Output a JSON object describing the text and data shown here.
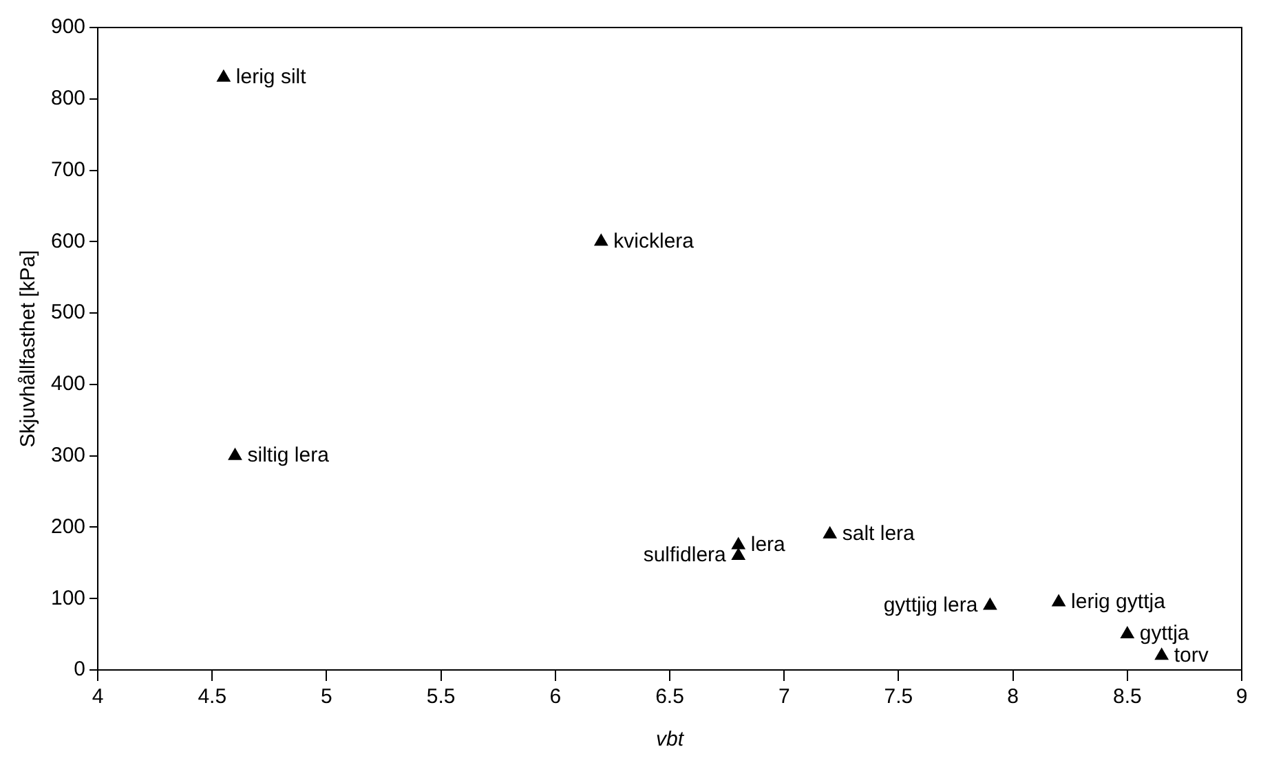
{
  "chart_data": {
    "type": "scatter",
    "xlabel": "vbt",
    "ylabel": "Skjuvhållfasthet [kPa]",
    "x": [
      4.55,
      6.2,
      4.6,
      6.8,
      6.8,
      7.2,
      7.9,
      8.2,
      8.5,
      8.65
    ],
    "series": [
      {
        "color": "#000000",
        "values": [
          830,
          600,
          300,
          175,
          160,
          190,
          90,
          95,
          50,
          20
        ]
      }
    ],
    "annotations": [
      {
        "text": "lerig silt",
        "x": 4.55,
        "y": 830
      },
      {
        "text": "kvicklera",
        "x": 6.2,
        "y": 600
      },
      {
        "text": "siltig lera",
        "x": 4.6,
        "y": 300
      },
      {
        "text": "lera",
        "x": 6.8,
        "y": 175
      },
      {
        "text": "sulfidlera",
        "x": 6.8,
        "y": 160
      },
      {
        "text": "salt lera",
        "x": 7.2,
        "y": 190
      },
      {
        "text": "gyttjig lera",
        "x": 7.9,
        "y": 90
      },
      {
        "text": "lerig gyttja",
        "x": 8.2,
        "y": 95
      },
      {
        "text": "gyttja",
        "x": 8.5,
        "y": 50
      },
      {
        "text": "torv",
        "x": 8.65,
        "y": 20
      }
    ],
    "xlim": [
      4,
      9
    ],
    "xticks": [
      4,
      4.5,
      5,
      5.5,
      6,
      6.5,
      7,
      7.5,
      8,
      8.5,
      9
    ],
    "ylim": [
      0,
      900
    ],
    "yticks": [
      0,
      100,
      200,
      300,
      400,
      500,
      600,
      700,
      800,
      900
    ],
    "grid": false,
    "legend": false,
    "marker": "triangle"
  }
}
